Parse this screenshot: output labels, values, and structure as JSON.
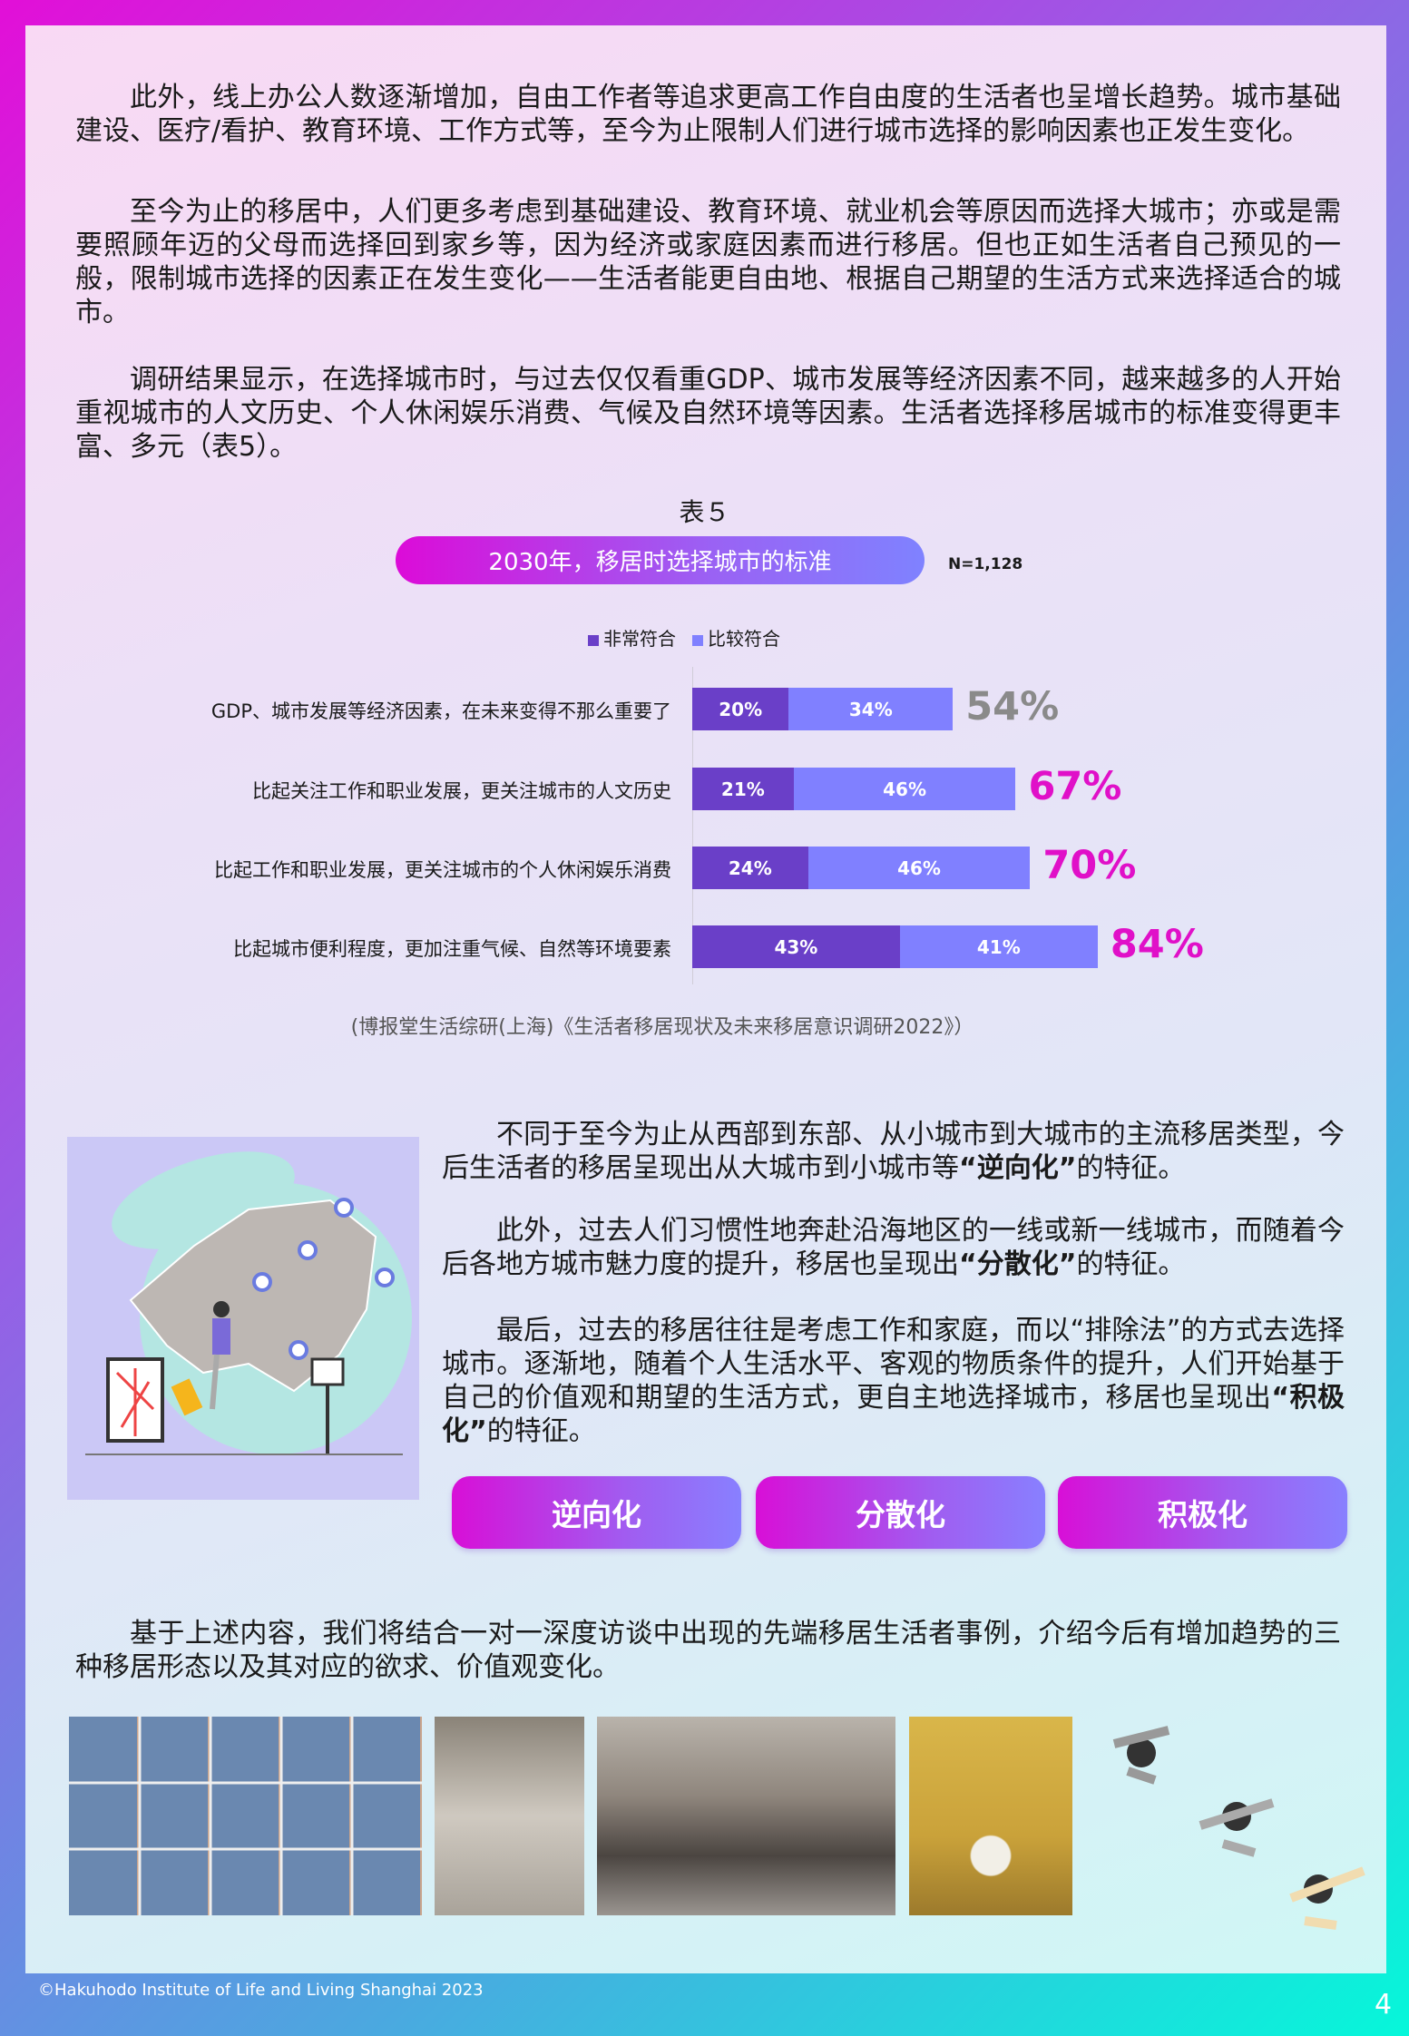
{
  "paragraphs": {
    "p1": "此外，线上办公人数逐渐增加，自由工作者等追求更高工作自由度的生活者也呈增长趋势。城市基础建设、医疗/看护、教育环境、工作方式等，至今为止限制人们进行城市选择的影响因素也正发生变化。",
    "p2": "至今为止的移居中，人们更多考虑到基础建设、教育环境、就业机会等原因而选择大城市；亦或是需要照顾年迈的父母而选择回到家乡等，因为经济或家庭因素而进行移居。但也正如生活者自己预见的一般，限制城市选择的因素正在发生变化——生活者能更自由地、根据自己期望的生活方式来选择适合的城市。",
    "p3": "调研结果显示，在选择城市时，与过去仅仅看重GDP、城市发展等经济因素不同，越来越多的人开始重视城市的人文历史、个人休闲娱乐消费、气候及自然环境等因素。生活者选择移居城市的标准变得更丰富、多元（表5）。",
    "p4": "基于上述内容，我们将结合一对一深度访谈中出现的先端移居生活者事例，介绍今后有增加趋势的三种移居形态以及其对应的欲求、价值观变化。"
  },
  "right_text": [
    {
      "pre": "不同于至今为止从西部到东部、从小城市到大城市的主流移居类型，今后生活者的移居呈现出从大城市到小城市等",
      "bold": "“逆向化”",
      "post": "的特征。"
    },
    {
      "pre": "此外，过去人们习惯性地奔赴沿海地区的一线或新一线城市，而随着今后各地方城市魅力度的提升，移居也呈现出",
      "bold": "“分散化”",
      "post": "的特征。"
    },
    {
      "pre": "最后，过去的移居往往是考虑工作和家庭，而以“排除法”的方式去选择城市。逐渐地，随着个人生活水平、客观的物质条件的提升，人们开始基于自己的价值观和期望的生活方式，更自主地选择城市，移居也呈现出",
      "bold": "“积极化”",
      "post": "的特征。"
    }
  ],
  "buttons": [
    "逆向化",
    "分散化",
    "积极化"
  ],
  "chart_data": {
    "type": "bar",
    "stacked": true,
    "orientation": "horizontal",
    "table_label": "表５",
    "title": "2030年，移居时选择城市的标准",
    "sample": "N=1,128",
    "categories": [
      "GDP、城市发展等经济因素，在未来变得不那么重要了",
      "比起关注工作和职业发展，更关注城市的人文历史",
      "比起工作和职业发展，更关注城市的个人休闲娱乐消费",
      "比起城市便利程度，更加注重气候、自然等环境要素"
    ],
    "series": [
      {
        "name": "非常符合",
        "values": [
          20,
          21,
          24,
          43
        ],
        "color": "#6a3fc8"
      },
      {
        "name": "比较符合",
        "values": [
          34,
          46,
          46,
          41
        ],
        "color": "#8080ff"
      }
    ],
    "totals": [
      54,
      67,
      70,
      84
    ],
    "total_colors": [
      "#8a8a8a",
      "#e010c8",
      "#e010c8",
      "#e010c8"
    ],
    "xlim": [
      0,
      100
    ],
    "legend": "top",
    "source": "(博报堂生活综研(上海)《生活者移居现状及未来移居意识调研2022》）"
  },
  "footer": {
    "copyright": "©Hakuhodo Institute of Life and Living Shanghai 2023",
    "page": "4"
  }
}
